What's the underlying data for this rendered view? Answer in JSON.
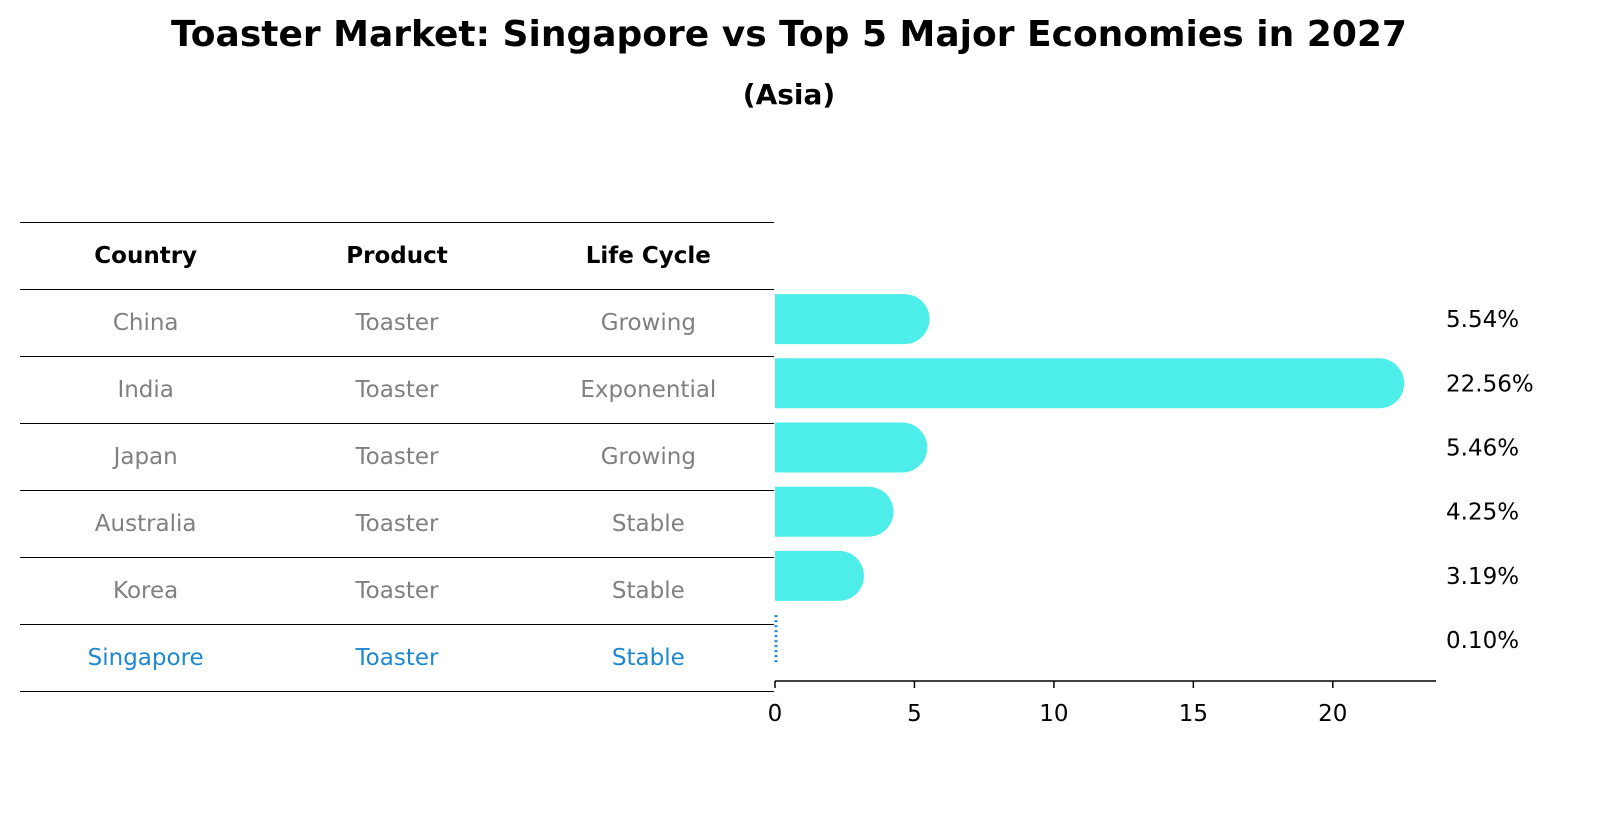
{
  "title": "Toaster Market: Singapore vs Top 5 Major Economies in 2027",
  "subtitle": "(Asia)",
  "table": {
    "headers": [
      "Country",
      "Product",
      "Life Cycle"
    ],
    "rows": [
      {
        "country": "China",
        "product": "Toaster",
        "life_cycle": "Growing"
      },
      {
        "country": "India",
        "product": "Toaster",
        "life_cycle": "Exponential"
      },
      {
        "country": "Japan",
        "product": "Toaster",
        "life_cycle": "Growing"
      },
      {
        "country": "Australia",
        "product": "Toaster",
        "life_cycle": "Stable"
      },
      {
        "country": "Korea",
        "product": "Toaster",
        "life_cycle": "Stable"
      },
      {
        "country": "Singapore",
        "product": "Toaster",
        "life_cycle": "Stable"
      }
    ]
  },
  "chart_data": {
    "type": "bar",
    "orientation": "horizontal",
    "title": "Toaster Market: Singapore vs Top 5 Major Economies in 2027",
    "subtitle": "(Asia)",
    "categories": [
      "China",
      "India",
      "Japan",
      "Australia",
      "Korea",
      "Singapore"
    ],
    "values": [
      5.54,
      22.56,
      5.46,
      4.25,
      3.19,
      0.1
    ],
    "value_labels": [
      "5.54%",
      "22.56%",
      "5.46%",
      "4.25%",
      "3.19%",
      "0.10%"
    ],
    "highlight": "Singapore",
    "xlabel": "",
    "ylabel": "",
    "xlim": [
      0,
      23.7
    ],
    "xticks": [
      0,
      5,
      10,
      15,
      20
    ],
    "grid": false,
    "colors": {
      "bar": "#4deeea",
      "highlight": "#1e88d0",
      "highlight_text": "#1e88d0",
      "muted_text": "#808080"
    }
  }
}
